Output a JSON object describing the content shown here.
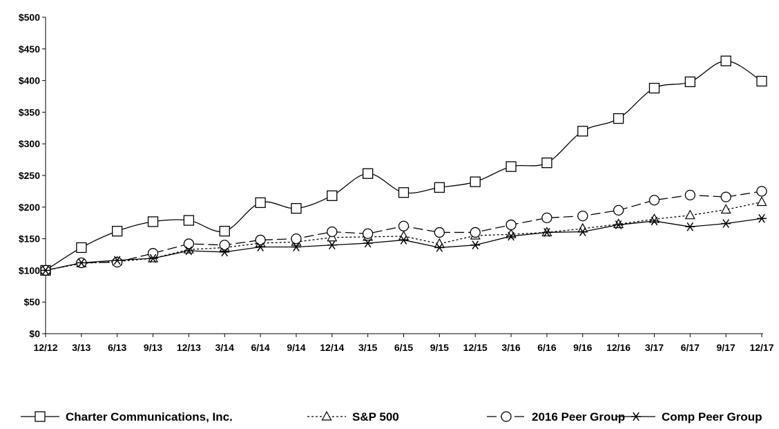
{
  "chart_data": {
    "type": "line",
    "title": "",
    "xlabel": "",
    "ylabel": "",
    "ylim": [
      0,
      500
    ],
    "yticks": [
      0,
      50,
      100,
      150,
      200,
      250,
      300,
      350,
      400,
      450,
      500
    ],
    "ytick_labels": [
      "$0",
      "$50",
      "$100",
      "$150",
      "$200",
      "$250",
      "$300",
      "$350",
      "$400",
      "$450",
      "$500"
    ],
    "categories": [
      "12/12",
      "3/13",
      "6/13",
      "9/13",
      "12/13",
      "3/14",
      "6/14",
      "9/14",
      "12/14",
      "3/15",
      "6/15",
      "9/15",
      "12/15",
      "3/16",
      "6/16",
      "9/16",
      "12/16",
      "3/17",
      "6/17",
      "9/17",
      "12/17"
    ],
    "grid": false,
    "legend_position": "bottom",
    "series": [
      {
        "name": "Charter Communications, Inc.",
        "marker": "square",
        "line": "solid",
        "color": "#000000",
        "smooth": true,
        "values": [
          100,
          136,
          162,
          177,
          179,
          162,
          207,
          198,
          218,
          253,
          223,
          231,
          240,
          264,
          270,
          320,
          340,
          388,
          398,
          431,
          399
        ]
      },
      {
        "name": "S&P 500",
        "marker": "triangle",
        "line": "dotted",
        "color": "#000000",
        "smooth": false,
        "values": [
          100,
          111,
          114,
          119,
          133,
          136,
          143,
          145,
          152,
          153,
          154,
          142,
          155,
          157,
          160,
          166,
          173,
          181,
          187,
          196,
          208
        ]
      },
      {
        "name": "2016 Peer Group",
        "marker": "circle",
        "line": "dashed",
        "color": "#000000",
        "smooth": false,
        "values": [
          100,
          112,
          113,
          127,
          142,
          140,
          148,
          150,
          161,
          158,
          170,
          160,
          160,
          172,
          183,
          186,
          195,
          211,
          219,
          216,
          225
        ]
      },
      {
        "name": "Comp Peer Group",
        "marker": "star",
        "line": "solid",
        "color": "#000000",
        "smooth": false,
        "values": [
          100,
          112,
          116,
          119,
          131,
          129,
          137,
          137,
          140,
          143,
          148,
          136,
          140,
          154,
          160,
          161,
          172,
          178,
          169,
          174,
          182
        ]
      }
    ]
  }
}
